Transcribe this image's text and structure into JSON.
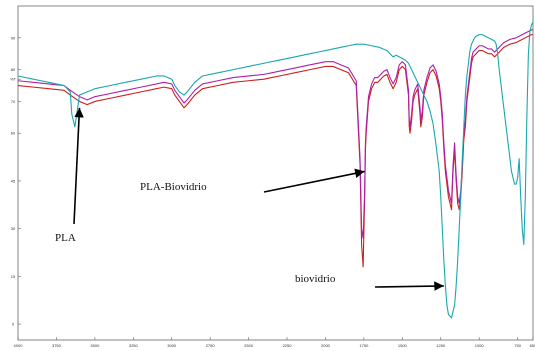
{
  "chart_data": {
    "type": "line",
    "title": "",
    "xlabel": "",
    "ylabel": "",
    "xlim": [
      4000,
      650
    ],
    "ylim": [
      -5,
      100
    ],
    "grid": false,
    "legend": "none",
    "y_ticks": [
      {
        "value": 90,
        "label": "90"
      },
      {
        "value": 80,
        "label": "80"
      },
      {
        "value": 77,
        "label": "%T"
      },
      {
        "value": 70,
        "label": "70"
      },
      {
        "value": 60,
        "label": "60"
      },
      {
        "value": 45,
        "label": "45"
      },
      {
        "value": 30,
        "label": "30"
      },
      {
        "value": 15,
        "label": "15"
      },
      {
        "value": 0,
        "label": "0"
      }
    ],
    "x_ticks": [
      {
        "value": 4000,
        "label": "4000"
      },
      {
        "value": 3750,
        "label": "3750"
      },
      {
        "value": 3500,
        "label": "3500"
      },
      {
        "value": 3250,
        "label": "3250"
      },
      {
        "value": 3000,
        "label": "3000"
      },
      {
        "value": 2750,
        "label": "2750"
      },
      {
        "value": 2500,
        "label": "2500"
      },
      {
        "value": 2250,
        "label": "2250"
      },
      {
        "value": 2000,
        "label": "2000"
      },
      {
        "value": 1750,
        "label": "1750"
      },
      {
        "value": 1500,
        "label": "1500"
      },
      {
        "value": 1250,
        "label": "1250"
      },
      {
        "value": 1000,
        "label": "1000"
      },
      {
        "value": 750,
        "label": "750"
      },
      {
        "value": 650,
        "label": "650"
      }
    ],
    "colors": {
      "red": "#cc1f1f",
      "magenta": "#b01ea8",
      "cyan": "#1aa7ad"
    },
    "series": [
      {
        "color": "red",
        "x": [
          4000,
          3900,
          3800,
          3700,
          3660,
          3600,
          3550,
          3500,
          3400,
          3300,
          3200,
          3100,
          3050,
          3000,
          2980,
          2950,
          2920,
          2900,
          2850,
          2800,
          2700,
          2600,
          2500,
          2400,
          2350,
          2300,
          2200,
          2100,
          2000,
          1950,
          1900,
          1850,
          1800,
          1790,
          1775,
          1765,
          1755,
          1745,
          1740,
          1735,
          1720,
          1700,
          1680,
          1660,
          1620,
          1600,
          1580,
          1560,
          1540,
          1520,
          1500,
          1480,
          1460,
          1455,
          1450,
          1440,
          1430,
          1420,
          1400,
          1385,
          1380,
          1370,
          1360,
          1350,
          1340,
          1320,
          1300,
          1280,
          1260,
          1250,
          1240,
          1230,
          1220,
          1210,
          1200,
          1190,
          1180,
          1170,
          1160,
          1150,
          1140,
          1130,
          1120,
          1110,
          1100,
          1090,
          1080,
          1060,
          1050,
          1040,
          1020,
          1000,
          980,
          960,
          940,
          920,
          900,
          880,
          870,
          860,
          840,
          800,
          760,
          740,
          720,
          700,
          680,
          660,
          650
        ],
        "y": [
          75,
          74.5,
          74,
          73.5,
          72,
          70,
          69,
          70,
          71,
          72,
          73,
          74,
          74.5,
          74,
          72,
          70,
          68,
          69,
          72,
          74,
          75,
          76,
          76.5,
          77,
          77.5,
          78,
          79,
          80,
          81,
          81,
          80,
          79,
          75,
          65,
          50,
          25,
          18,
          40,
          55,
          60,
          70,
          74,
          76,
          76,
          78,
          78.5,
          76,
          74,
          76,
          80,
          81,
          80,
          72,
          62,
          60,
          64,
          70,
          72,
          74,
          66,
          62,
          65,
          72,
          74,
          76,
          79,
          80,
          78,
          74,
          70,
          64,
          55,
          48,
          44,
          40,
          38,
          36,
          48,
          55,
          45,
          38,
          36,
          40,
          48,
          58,
          62,
          70,
          78,
          82,
          84,
          85,
          86,
          86,
          85.5,
          85,
          85,
          84,
          85,
          85.5,
          86,
          87,
          88,
          88.5,
          89,
          89.5,
          90,
          90.5,
          91,
          91
        ]
      },
      {
        "color": "magenta",
        "x": [
          4000,
          3900,
          3800,
          3700,
          3660,
          3600,
          3550,
          3500,
          3400,
          3300,
          3200,
          3100,
          3050,
          3000,
          2980,
          2950,
          2920,
          2900,
          2850,
          2800,
          2700,
          2600,
          2500,
          2400,
          2350,
          2300,
          2200,
          2100,
          2000,
          1950,
          1900,
          1850,
          1800,
          1790,
          1775,
          1765,
          1755,
          1745,
          1740,
          1735,
          1720,
          1700,
          1680,
          1660,
          1620,
          1600,
          1580,
          1560,
          1540,
          1520,
          1500,
          1480,
          1460,
          1455,
          1450,
          1440,
          1430,
          1420,
          1400,
          1385,
          1380,
          1370,
          1360,
          1350,
          1340,
          1320,
          1300,
          1280,
          1260,
          1250,
          1240,
          1230,
          1220,
          1210,
          1200,
          1190,
          1180,
          1170,
          1160,
          1150,
          1140,
          1130,
          1120,
          1110,
          1100,
          1090,
          1080,
          1060,
          1050,
          1040,
          1020,
          1000,
          980,
          960,
          940,
          920,
          900,
          880,
          870,
          860,
          840,
          800,
          760,
          740,
          720,
          700,
          680,
          660,
          650
        ],
        "y": [
          76.5,
          76,
          75.5,
          75,
          73.5,
          71.5,
          70.5,
          71.5,
          72.5,
          73.5,
          74.5,
          75.5,
          76,
          75.5,
          73.5,
          71.5,
          69.5,
          70.5,
          73.5,
          75.5,
          76.5,
          77.5,
          78,
          78.5,
          79,
          79.5,
          80.5,
          81.5,
          82.5,
          82.5,
          81.5,
          80.5,
          76.5,
          67,
          52,
          30,
          27,
          42,
          57,
          62,
          71.5,
          75.5,
          77.5,
          77.5,
          79.5,
          80,
          77.5,
          75.5,
          77.5,
          81.5,
          82.5,
          81.5,
          73.5,
          64,
          62,
          66,
          71.5,
          73.5,
          75.5,
          68,
          64,
          67,
          73.5,
          75.5,
          77.5,
          80.5,
          81.5,
          79.5,
          75.5,
          71.5,
          66,
          57,
          50,
          46,
          42,
          40,
          38,
          50,
          57,
          47,
          40,
          38,
          42,
          50,
          60,
          64,
          71.5,
          79.5,
          83.5,
          85.5,
          86.5,
          87.5,
          87.5,
          87,
          86.5,
          86.5,
          85.5,
          86.5,
          87,
          87.5,
          88.5,
          89.5,
          90,
          90.5,
          91,
          91.5,
          92,
          92.5,
          92.5
        ]
      },
      {
        "color": "cyan",
        "x": [
          4000,
          3900,
          3850,
          3800,
          3750,
          3700,
          3660,
          3650,
          3630,
          3600,
          3550,
          3500,
          3400,
          3300,
          3200,
          3100,
          3050,
          3000,
          2980,
          2950,
          2920,
          2900,
          2850,
          2800,
          2700,
          2600,
          2500,
          2400,
          2300,
          2200,
          2100,
          2050,
          2000,
          1950,
          1900,
          1850,
          1800,
          1750,
          1700,
          1650,
          1600,
          1580,
          1560,
          1540,
          1520,
          1500,
          1480,
          1460,
          1450,
          1440,
          1430,
          1420,
          1400,
          1380,
          1360,
          1340,
          1320,
          1300,
          1280,
          1260,
          1250,
          1240,
          1230,
          1220,
          1210,
          1200,
          1180,
          1160,
          1150,
          1140,
          1130,
          1120,
          1110,
          1100,
          1090,
          1080,
          1070,
          1060,
          1050,
          1040,
          1030,
          1020,
          1000,
          980,
          960,
          940,
          920,
          900,
          890,
          880,
          870,
          860,
          850,
          840,
          830,
          820,
          810,
          800,
          790,
          780,
          770,
          760,
          750,
          740,
          730,
          720,
          710,
          700,
          690,
          680,
          670,
          660,
          650
        ],
        "y": [
          78,
          77,
          76.5,
          76,
          75.5,
          75,
          73,
          66,
          62,
          72,
          73,
          74,
          75,
          76,
          77,
          78,
          78,
          77,
          75,
          73,
          72,
          73,
          76,
          78,
          79,
          80,
          81,
          82,
          83,
          84,
          85,
          85.5,
          86,
          86.5,
          87,
          87.5,
          88,
          88,
          87.5,
          87,
          86,
          85,
          84,
          84.5,
          84,
          83.5,
          83,
          82,
          81,
          80,
          79,
          78,
          76,
          74,
          72,
          70,
          67,
          63,
          56,
          48,
          40,
          30,
          20,
          12,
          6,
          3,
          2,
          6,
          12,
          20,
          30,
          40,
          52,
          62,
          72,
          78,
          82,
          86,
          88,
          89,
          90,
          90.5,
          91,
          91,
          90.5,
          90,
          89.5,
          89,
          88,
          85,
          80,
          76,
          72,
          68,
          64,
          60,
          56,
          52,
          48,
          46,
          44,
          44,
          46,
          52,
          40,
          30,
          25,
          40,
          65,
          85,
          92,
          94,
          95
        ]
      }
    ],
    "annotations": [
      {
        "text": "PLA-Biovidrio",
        "target_x": 1745,
        "target_y": 48,
        "series": "magenta"
      },
      {
        "text": "PLA",
        "target_x": 3600,
        "target_y": 68,
        "series": "magenta"
      },
      {
        "text": "biovidrio",
        "target_x": 1230,
        "target_y": 12,
        "series": "cyan"
      }
    ]
  }
}
